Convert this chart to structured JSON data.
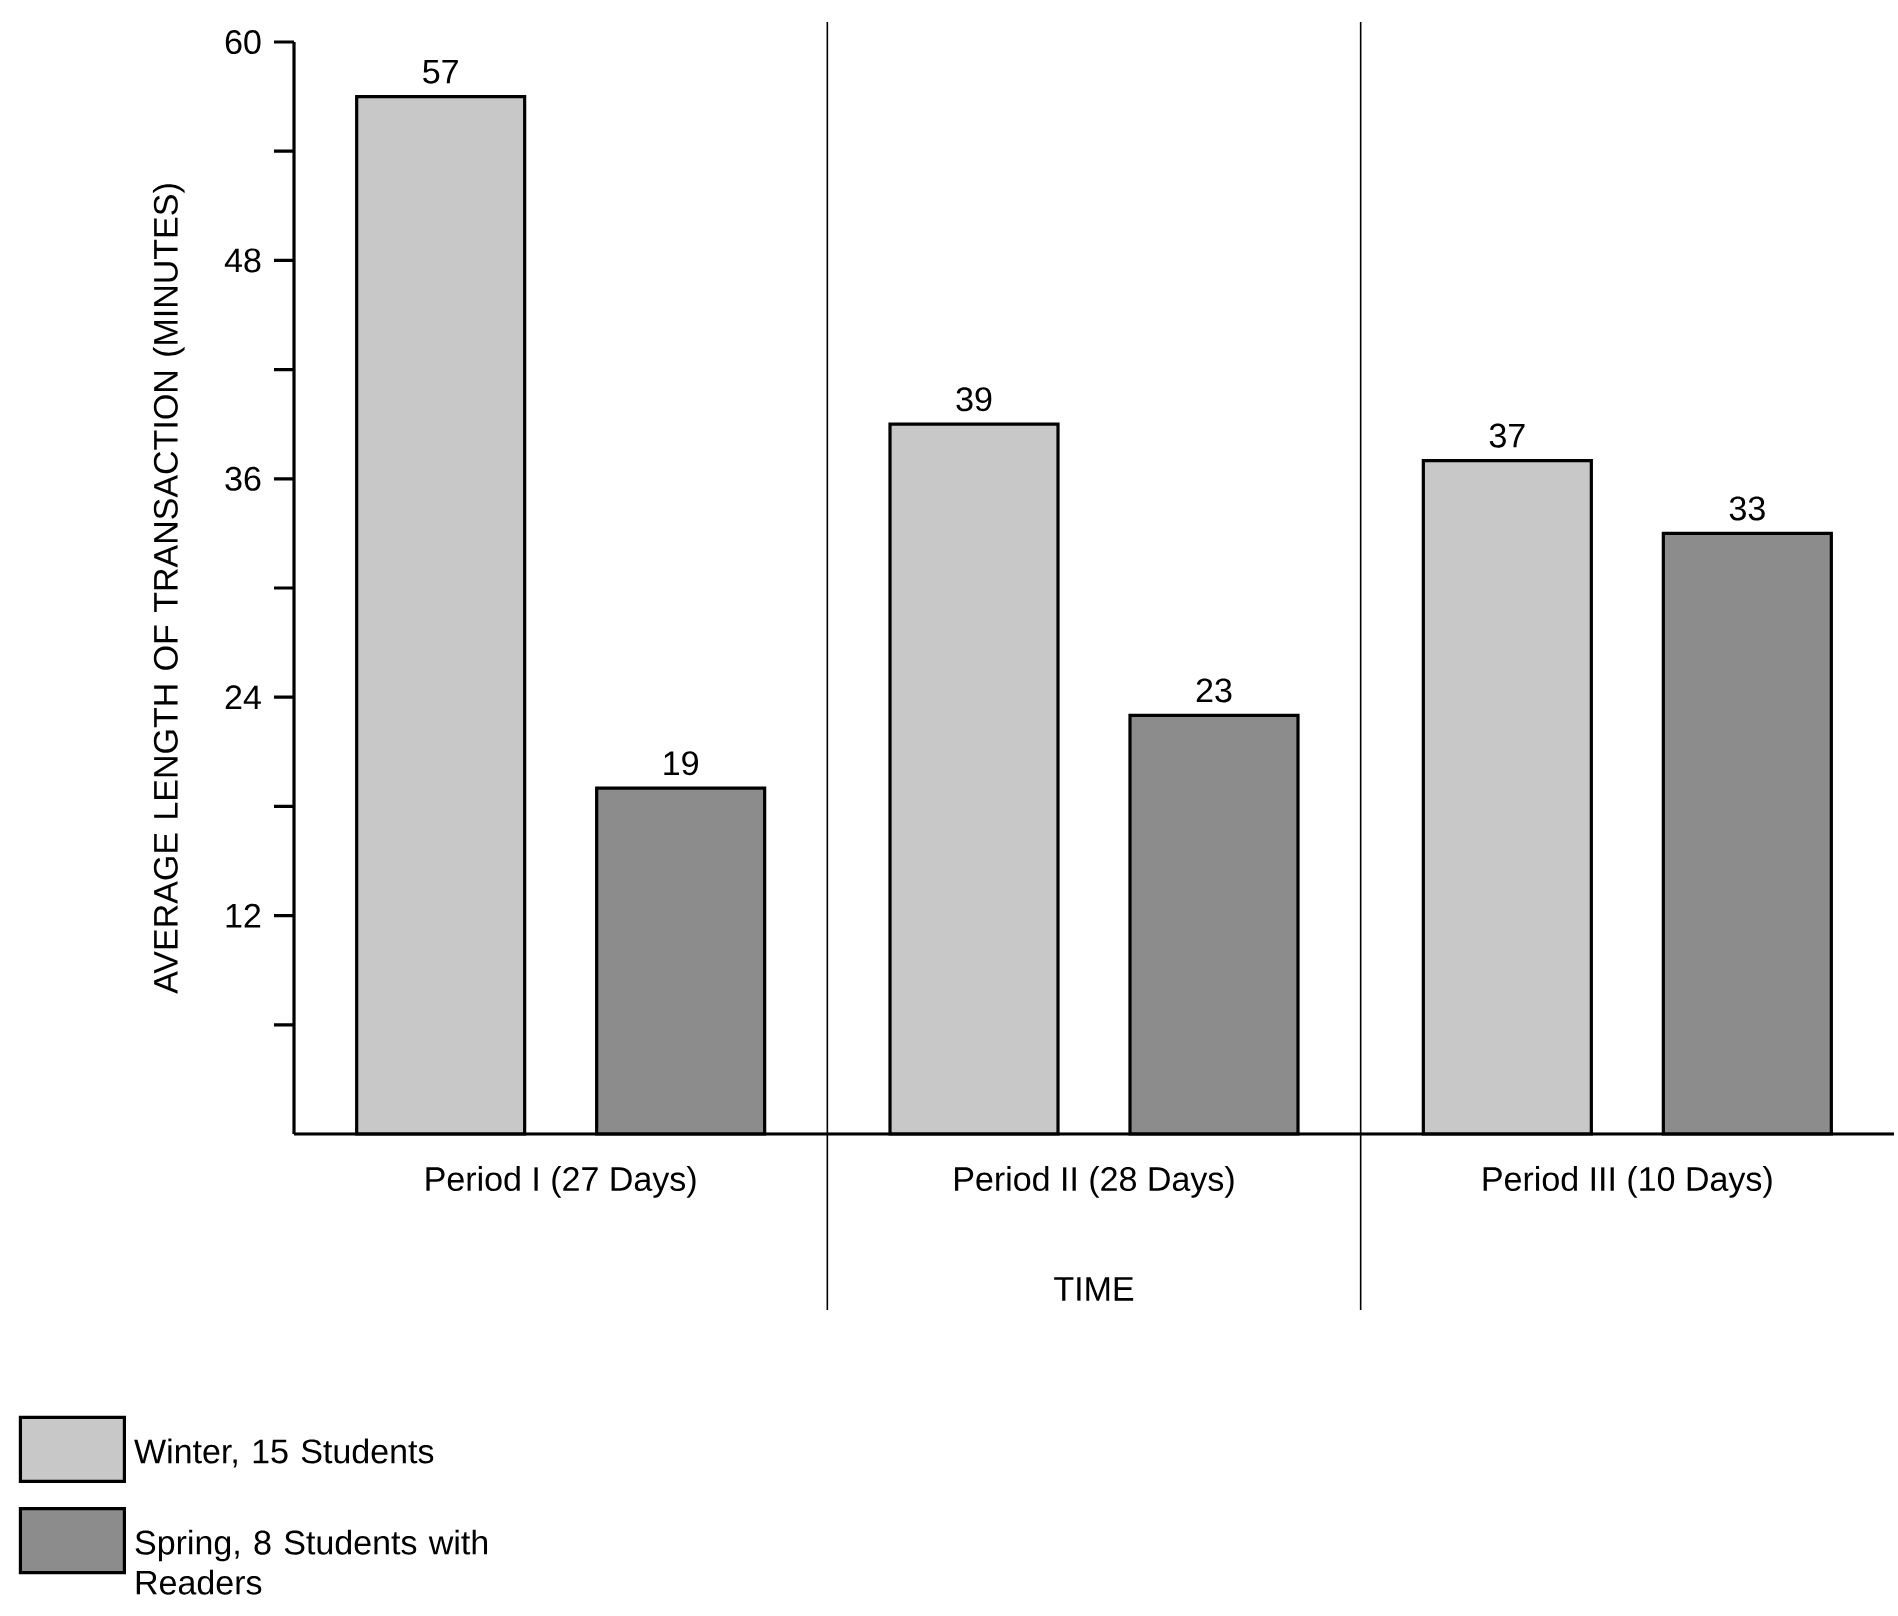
{
  "chart_data": {
    "type": "bar",
    "xlabel": "TIME",
    "ylabel": "AVERAGE LENGTH OF TRANSACTION (MINUTES)",
    "categories": [
      "Period I (27 Days)",
      "Period II (28 Days)",
      "Period III (10 Days)"
    ],
    "series": [
      {
        "name": "Winter, 15 Students",
        "color": "#c8c8c8",
        "values": [
          57,
          39,
          37
        ]
      },
      {
        "name": "Spring, 8 Students with Readers",
        "color": "#8c8c8c",
        "values": [
          19,
          23,
          33
        ]
      }
    ],
    "ylim": [
      0,
      60
    ],
    "yticks": [
      {
        "value": 6,
        "label": null
      },
      12,
      {
        "value": 18,
        "label": null
      },
      24,
      {
        "value": 30,
        "label": null
      },
      36,
      {
        "value": 42,
        "label": null
      },
      48,
      {
        "value": 54,
        "label": null
      },
      60
    ],
    "data_labels": true,
    "legend": "bottom left"
  }
}
